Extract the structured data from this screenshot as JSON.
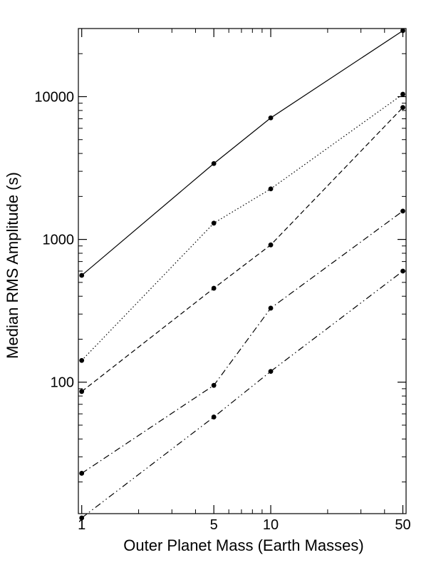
{
  "chart_data": {
    "type": "line",
    "title": "",
    "xlabel": "Outer Planet Mass (Earth Masses)",
    "ylabel": "Median RMS Amplitude (s)",
    "x_scale": "log",
    "y_scale": "log",
    "xlim": [
      0.96,
      52
    ],
    "ylim": [
      12,
      30000
    ],
    "x_ticks": [
      1,
      5,
      10,
      50
    ],
    "x_tick_labels": [
      "1",
      "5",
      "10",
      "50"
    ],
    "y_ticks": [
      100,
      1000,
      10000
    ],
    "y_tick_labels": [
      "100",
      "1000",
      "10000"
    ],
    "grid": false,
    "legend": false,
    "x": [
      1,
      5,
      10,
      50
    ],
    "series": [
      {
        "line_style": "solid",
        "values": [
          560,
          3400,
          7100,
          29000
        ]
      },
      {
        "line_style": "dotted",
        "values": [
          142,
          1300,
          2260,
          10400
        ]
      },
      {
        "line_style": "dashed",
        "values": [
          86,
          455,
          915,
          8400
        ]
      },
      {
        "line_style": "dash-dot",
        "values": [
          23,
          95,
          330,
          1580
        ]
      },
      {
        "line_style": "dash-dot-dot",
        "values": [
          11.2,
          57,
          119,
          600
        ]
      }
    ],
    "colors": {
      "line": "#000000",
      "marker": "#000000"
    }
  }
}
